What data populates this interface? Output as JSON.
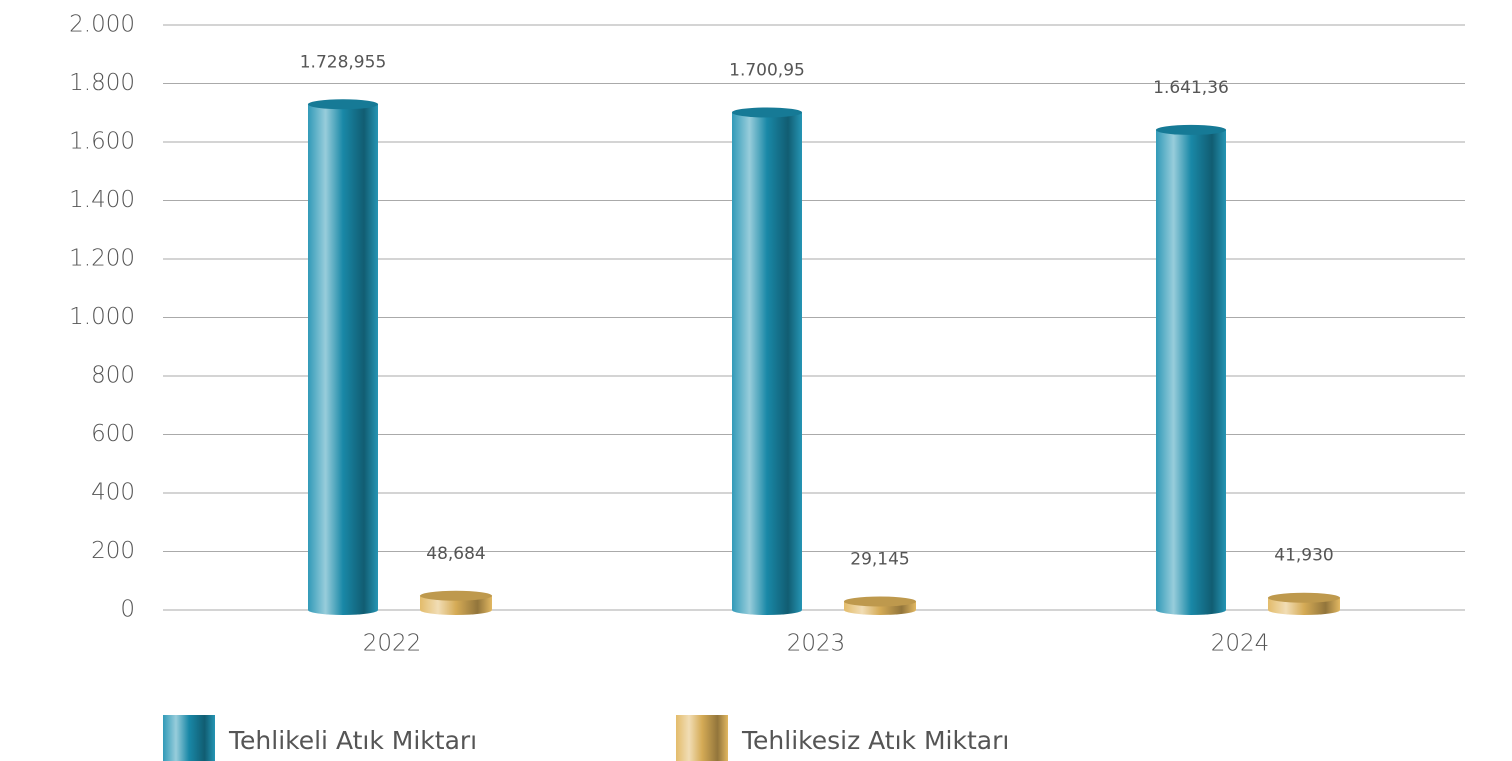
{
  "chart_data": {
    "type": "bar",
    "categories": [
      "2022",
      "2023",
      "2024"
    ],
    "series": [
      {
        "name": "Tehlikeli Atık Miktarı",
        "color": "#1a8fb0",
        "values": [
          1728.955,
          1700.95,
          1641.36
        ],
        "value_labels": [
          "1.728,955",
          "1.700,95",
          "1.641,36"
        ]
      },
      {
        "name": "Tehlikesiz Atık Miktarı",
        "color": "#e0b45a",
        "values": [
          48.684,
          29.145,
          41.93
        ],
        "value_labels": [
          "48,684",
          "29,145",
          "41,930"
        ]
      }
    ],
    "ylim": [
      0,
      2000
    ],
    "yticks": [
      0,
      200,
      400,
      600,
      800,
      {
        "value": 1000,
        "label": "1.000"
      },
      {
        "value": 1200,
        "label": "1.200"
      },
      {
        "value": 1400,
        "label": "1.400"
      },
      {
        "value": 1600,
        "label": "1.600"
      },
      {
        "value": 1800,
        "label": "1.800"
      },
      {
        "value": 2000,
        "label": "2.000"
      }
    ],
    "grid": true
  }
}
